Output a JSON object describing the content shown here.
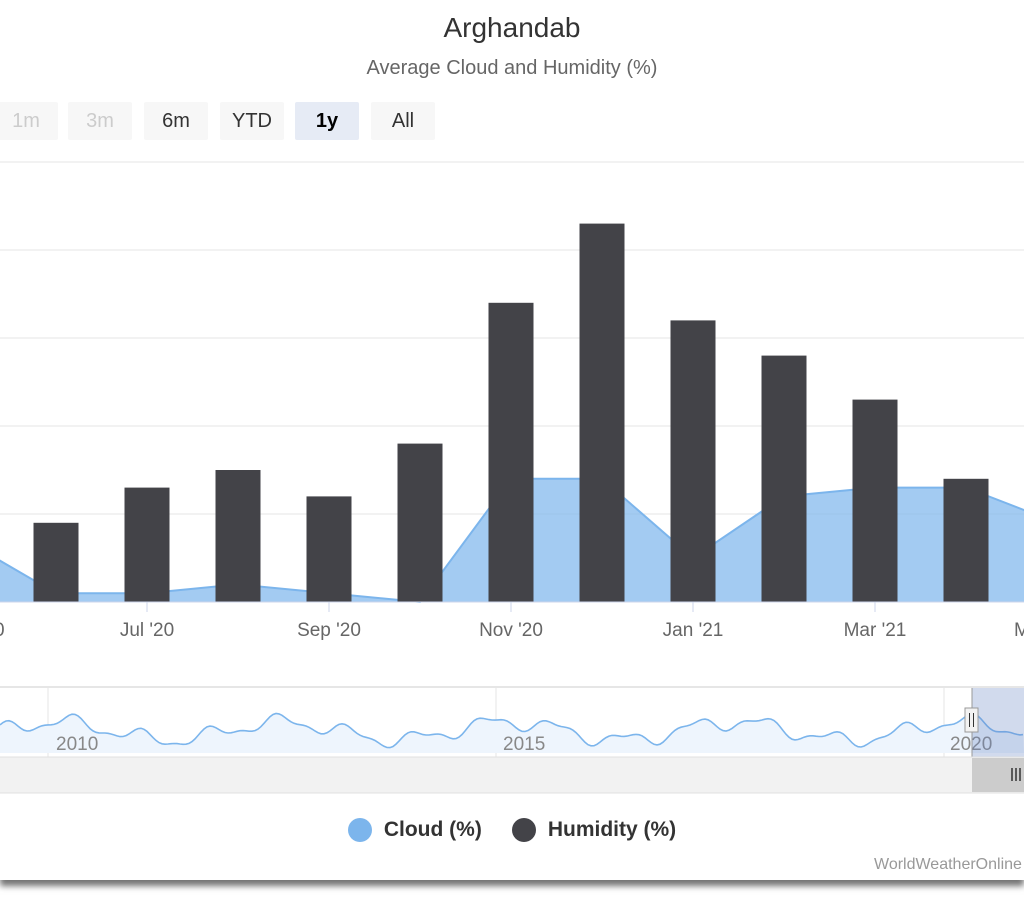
{
  "chart_data": {
    "type": "bar",
    "title": "Arghandab",
    "subtitle": "Average Cloud and Humidity (%)",
    "x": [
      "2020-05",
      "2020-06",
      "2020-07",
      "2020-08",
      "2020-09",
      "2020-10",
      "2020-11",
      "2020-12",
      "2021-01",
      "2021-02",
      "2021-03",
      "2021-04",
      "2021-05"
    ],
    "x_tick_labels": [
      "Jul '20",
      "Sep '20",
      "Nov '20",
      "Jan '21",
      "Mar '21"
    ],
    "x_tick_dates": [
      "2020-07",
      "2020-09",
      "2020-11",
      "2021-01",
      "2021-03"
    ],
    "ylim": [
      0,
      50
    ],
    "grid": true,
    "legend_position": "bottom-center",
    "series": [
      {
        "name": "Cloud (%)",
        "type": "area",
        "color": "#7cb5ec",
        "values": [
          7,
          1,
          1,
          2,
          1,
          0,
          14,
          14,
          5,
          12,
          13,
          13,
          9
        ]
      },
      {
        "name": "Humidity (%)",
        "type": "bar",
        "color": "#434348",
        "values": [
          null,
          9,
          13,
          15,
          12,
          18,
          34,
          43,
          32,
          28,
          23,
          14,
          null
        ]
      }
    ]
  },
  "range_selector": {
    "buttons": [
      {
        "label": "1m",
        "state": "disabled"
      },
      {
        "label": "3m",
        "state": "disabled"
      },
      {
        "label": "6m",
        "state": "normal"
      },
      {
        "label": "YTD",
        "state": "normal"
      },
      {
        "label": "1y",
        "state": "active"
      },
      {
        "label": "All",
        "state": "normal"
      }
    ]
  },
  "navigator": {
    "year_labels": [
      "2010",
      "2015",
      "2020"
    ]
  },
  "legend": {
    "items": [
      {
        "label": "Cloud (%)",
        "color": "#7cb5ec"
      },
      {
        "label": "Humidity (%)",
        "color": "#434348"
      }
    ]
  },
  "credits": "WorldWeatherOnline"
}
